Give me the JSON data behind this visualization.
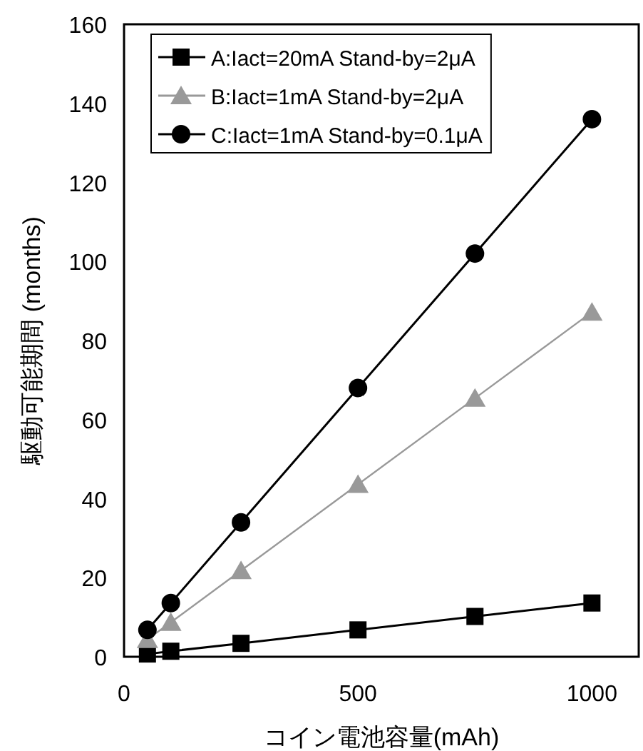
{
  "chart_data": {
    "type": "line",
    "xlabel": "コイン電池容量(mAh)",
    "ylabel": "駆動可能期間 (months)",
    "x": [
      50,
      100,
      250,
      500,
      750,
      1000
    ],
    "series": [
      {
        "name": "A:Iact=20mA Stand-by=2μA",
        "color": "#000000",
        "marker": "square",
        "values": [
          0.7,
          1.4,
          3.4,
          6.8,
          10.2,
          13.6
        ]
      },
      {
        "name": "B:Iact=1mA Stand-by=2μA",
        "color": "#999999",
        "marker": "triangle",
        "values": [
          4.4,
          8.7,
          21.8,
          43.6,
          65.4,
          87.2
        ]
      },
      {
        "name": "C:Iact=1mA Stand-by=0.1μA",
        "color": "#000000",
        "marker": "circle",
        "values": [
          6.8,
          13.6,
          34,
          68,
          102,
          136
        ]
      }
    ],
    "xlim": [
      0,
      1100
    ],
    "xticks": [
      0,
      500,
      1000
    ],
    "ylim": [
      0,
      160
    ],
    "yticks": [
      0,
      20,
      40,
      60,
      80,
      100,
      120,
      140,
      160
    ],
    "grid": false,
    "legend": "top left",
    "line_style": "solid"
  }
}
